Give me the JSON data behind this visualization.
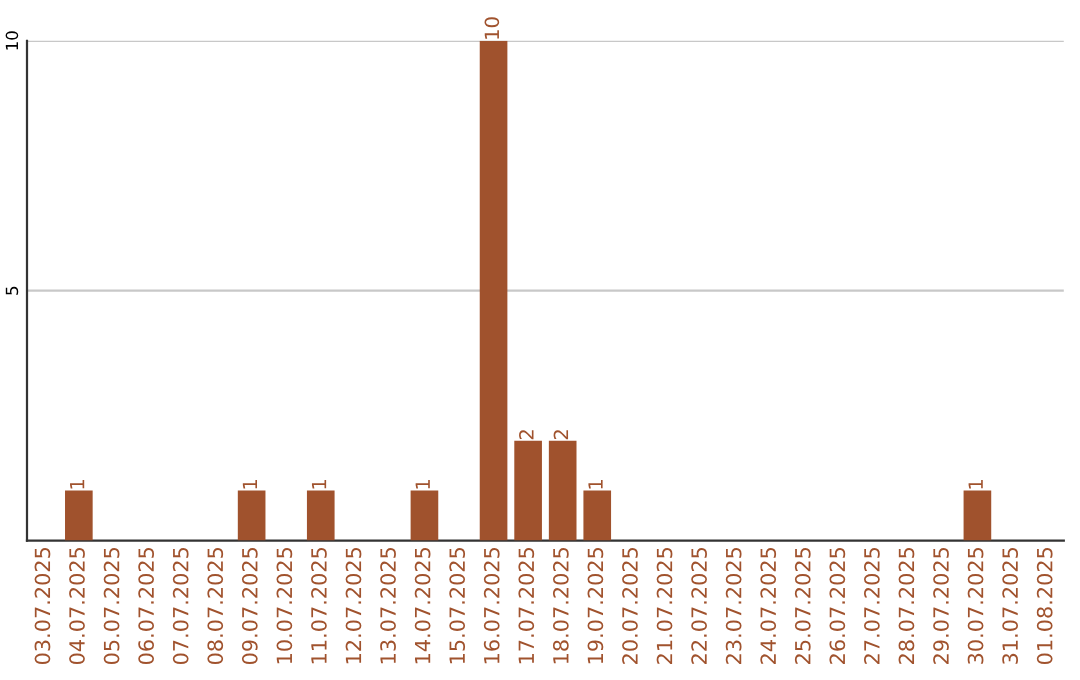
{
  "chart_data": {
    "type": "bar",
    "categories": [
      "03.07.2025",
      "04.07.2025",
      "05.07.2025",
      "06.07.2025",
      "07.07.2025",
      "08.07.2025",
      "09.07.2025",
      "10.07.2025",
      "11.07.2025",
      "12.07.2025",
      "13.07.2025",
      "14.07.2025",
      "15.07.2025",
      "16.07.2025",
      "17.07.2025",
      "18.07.2025",
      "19.07.2025",
      "20.07.2025",
      "21.07.2025",
      "22.07.2025",
      "23.07.2025",
      "24.07.2025",
      "25.07.2025",
      "26.07.2025",
      "27.07.2025",
      "28.07.2025",
      "29.07.2025",
      "30.07.2025",
      "31.07.2025",
      "01.08.2025"
    ],
    "values": [
      0,
      1,
      0,
      0,
      0,
      0,
      1,
      0,
      1,
      0,
      0,
      1,
      0,
      10,
      2,
      2,
      1,
      0,
      0,
      0,
      0,
      0,
      0,
      0,
      0,
      0,
      0,
      1,
      0,
      0
    ],
    "value_labels": [
      null,
      "1",
      null,
      null,
      null,
      null,
      "1",
      null,
      "1",
      null,
      null,
      "1",
      null,
      "10",
      "2",
      "2",
      "1",
      null,
      null,
      null,
      null,
      null,
      null,
      null,
      null,
      null,
      null,
      "1",
      null,
      null
    ],
    "color": "#a0522d",
    "ylim": [
      0,
      10
    ],
    "yticks": [
      5,
      10
    ],
    "grid": "y"
  }
}
